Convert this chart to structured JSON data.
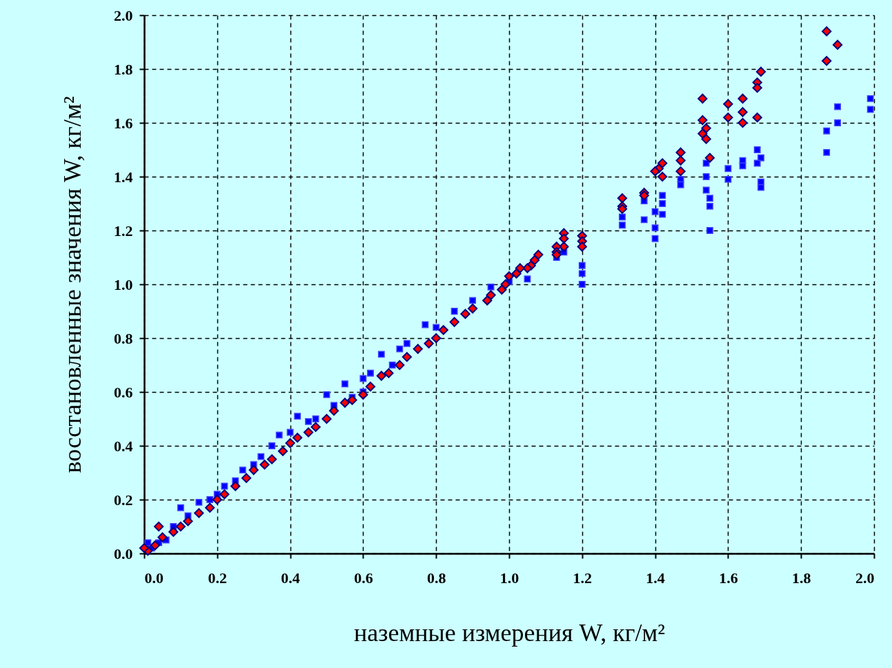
{
  "chart_data": {
    "type": "scatter",
    "xlabel": "наземные измерения W, кг/м²",
    "ylabel": "восстановленные значения  W, кг/м²",
    "xlim": [
      0,
      2
    ],
    "ylim": [
      0,
      2
    ],
    "xticks": [
      {
        "value": 0,
        "label": "0.0"
      },
      {
        "value": 0.2,
        "label": "0.2"
      },
      {
        "value": 0.4,
        "label": "0.4"
      },
      {
        "value": 0.6,
        "label": "0.6"
      },
      {
        "value": 0.8,
        "label": "0.8"
      },
      {
        "value": 1,
        "label": "1.0"
      },
      {
        "value": 1.2,
        "label": "1.2"
      },
      {
        "value": 1.4,
        "label": "1.4"
      },
      {
        "value": 1.6,
        "label": "1.6"
      },
      {
        "value": 1.8,
        "label": "1.8"
      },
      {
        "value": 2,
        "label": "2.0"
      }
    ],
    "yticks": [
      {
        "value": 0,
        "label": "0.0"
      },
      {
        "value": 0.2,
        "label": "0.2"
      },
      {
        "value": 0.4,
        "label": "0.4"
      },
      {
        "value": 0.6,
        "label": "0.6"
      },
      {
        "value": 0.8,
        "label": "0.8"
      },
      {
        "value": 1,
        "label": "1.0"
      },
      {
        "value": 1.2,
        "label": "1.2"
      },
      {
        "value": 1.4,
        "label": "1.4"
      },
      {
        "value": 1.6,
        "label": "1.6"
      },
      {
        "value": 1.8,
        "label": "1.8"
      },
      {
        "value": 2,
        "label": "2.0"
      }
    ],
    "grid": true,
    "series": [
      {
        "color": "#0000ff",
        "marker": "square",
        "x": [
          1.99,
          1.99,
          1.9,
          1.9,
          1.87,
          1.87,
          1.69,
          1.68,
          1.68,
          1.69,
          1.69,
          1.64,
          1.64,
          1.6,
          1.6,
          1.54,
          1.54,
          1.54,
          1.55,
          1.55,
          1.55,
          1.47,
          1.47,
          1.42,
          1.42,
          1.42,
          1.4,
          1.4,
          1.4,
          1.37,
          1.37,
          1.31,
          1.31,
          1.2,
          1.2,
          1.2,
          1.15,
          1.13,
          1.05,
          1.0,
          0.95,
          0.9,
          0.85,
          0.8,
          0.77,
          0.72,
          0.7,
          0.68,
          0.65,
          0.62,
          0.6,
          0.6,
          0.57,
          0.55,
          0.52,
          0.5,
          0.47,
          0.45,
          0.42,
          0.4,
          0.37,
          0.35,
          0.32,
          0.3,
          0.27,
          0.25,
          0.22,
          0.2,
          0.18,
          0.15,
          0.12,
          0.1,
          0.08,
          0.06,
          0.04,
          0.02,
          0.01
        ],
        "values": [
          1.69,
          1.65,
          1.66,
          1.6,
          1.57,
          1.49,
          1.47,
          1.5,
          1.45,
          1.38,
          1.36,
          1.46,
          1.44,
          1.43,
          1.39,
          1.45,
          1.4,
          1.35,
          1.32,
          1.29,
          1.2,
          1.39,
          1.37,
          1.33,
          1.3,
          1.26,
          1.27,
          1.21,
          1.17,
          1.31,
          1.24,
          1.25,
          1.22,
          1.07,
          1.04,
          1.0,
          1.12,
          1.1,
          1.02,
          1.01,
          0.99,
          0.94,
          0.9,
          0.84,
          0.85,
          0.78,
          0.76,
          0.7,
          0.74,
          0.67,
          0.6,
          0.65,
          0.58,
          0.63,
          0.55,
          0.59,
          0.5,
          0.49,
          0.51,
          0.45,
          0.44,
          0.4,
          0.36,
          0.33,
          0.31,
          0.27,
          0.25,
          0.22,
          0.2,
          0.19,
          0.14,
          0.17,
          0.1,
          0.05,
          0.04,
          0.02,
          0.04
        ]
      },
      {
        "color": "#ff0000",
        "marker": "diamond",
        "x": [
          1.87,
          1.9,
          1.87,
          1.69,
          1.68,
          1.68,
          1.68,
          1.64,
          1.64,
          1.64,
          1.6,
          1.6,
          1.53,
          1.53,
          1.54,
          1.53,
          1.54,
          1.55,
          1.47,
          1.47,
          1.47,
          1.42,
          1.41,
          1.4,
          1.42,
          1.37,
          1.37,
          1.31,
          1.31,
          1.31,
          1.2,
          1.2,
          1.2,
          1.15,
          1.15,
          1.15,
          1.13,
          1.13,
          1.13,
          1.08,
          1.07,
          1.06,
          1.05,
          1.03,
          1.02,
          1.0,
          0.99,
          0.98,
          0.95,
          0.94,
          0.9,
          0.88,
          0.85,
          0.82,
          0.8,
          0.78,
          0.75,
          0.72,
          0.7,
          0.67,
          0.65,
          0.62,
          0.6,
          0.57,
          0.55,
          0.52,
          0.5,
          0.47,
          0.45,
          0.42,
          0.4,
          0.38,
          0.35,
          0.33,
          0.3,
          0.28,
          0.25,
          0.22,
          0.2,
          0.18,
          0.15,
          0.12,
          0.1,
          0.08,
          0.05,
          0.04,
          0.03,
          0.01,
          0.0
        ],
        "values": [
          1.94,
          1.89,
          1.83,
          1.79,
          1.75,
          1.73,
          1.62,
          1.69,
          1.64,
          1.6,
          1.67,
          1.62,
          1.69,
          1.61,
          1.58,
          1.56,
          1.54,
          1.47,
          1.49,
          1.46,
          1.42,
          1.45,
          1.43,
          1.42,
          1.4,
          1.34,
          1.33,
          1.32,
          1.29,
          1.28,
          1.18,
          1.16,
          1.14,
          1.19,
          1.17,
          1.14,
          1.14,
          1.12,
          1.11,
          1.11,
          1.09,
          1.07,
          1.06,
          1.06,
          1.04,
          1.03,
          1.0,
          0.98,
          0.96,
          0.94,
          0.91,
          0.89,
          0.86,
          0.83,
          0.8,
          0.78,
          0.76,
          0.73,
          0.7,
          0.67,
          0.66,
          0.62,
          0.59,
          0.57,
          0.56,
          0.53,
          0.5,
          0.47,
          0.45,
          0.43,
          0.41,
          0.38,
          0.35,
          0.33,
          0.31,
          0.28,
          0.25,
          0.22,
          0.2,
          0.17,
          0.15,
          0.12,
          0.1,
          0.08,
          0.06,
          0.1,
          0.03,
          0.01,
          0.02
        ]
      }
    ]
  }
}
